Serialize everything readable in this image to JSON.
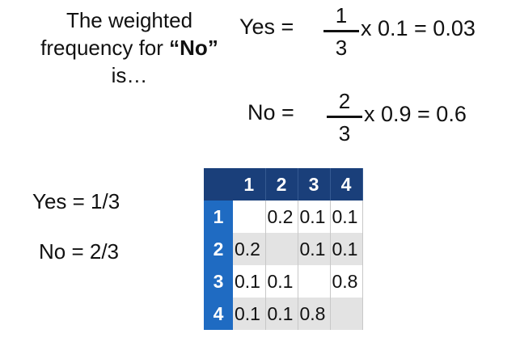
{
  "heading": {
    "line1": "The weighted",
    "line2_pre": "frequency for ",
    "line2_bold": "“No”",
    "line3": "is…"
  },
  "equations": [
    {
      "label": "Yes =",
      "numerator": "1",
      "denominator": "3",
      "rhs": "x 0.1 = 0.03"
    },
    {
      "label": "No =",
      "numerator": "2",
      "denominator": "3",
      "rhs": "x 0.9 = 0.6"
    }
  ],
  "priors": {
    "yes": "Yes = 1/3",
    "no": "No = 2/3"
  },
  "matrix": {
    "col_headers": [
      "1",
      "2",
      "3",
      "4"
    ],
    "rows": [
      {
        "label": "1",
        "cells": [
          "",
          "0.2",
          "0.1",
          "0.1"
        ]
      },
      {
        "label": "2",
        "cells": [
          "0.2",
          "",
          "0.1",
          "0.1"
        ]
      },
      {
        "label": "3",
        "cells": [
          "0.1",
          "0.1",
          "",
          "0.8"
        ]
      },
      {
        "label": "4",
        "cells": [
          "0.1",
          "0.1",
          "0.8",
          ""
        ]
      }
    ]
  }
}
